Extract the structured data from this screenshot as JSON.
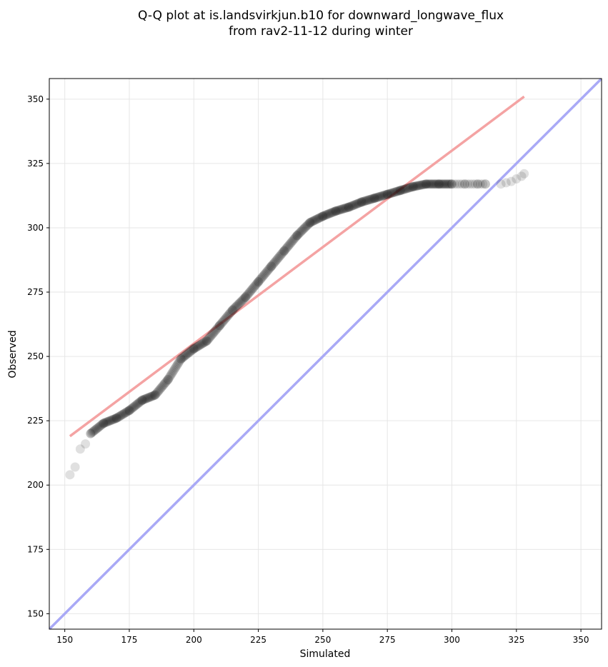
{
  "chart_data": {
    "type": "scatter",
    "title": [
      "Q-Q plot at is.landsvirkjun.b10 for downward_longwave_flux",
      "from rav2-11-12 during winter"
    ],
    "xlabel": "Simulated",
    "ylabel": "Observed",
    "xlim": [
      144,
      358
    ],
    "ylim": [
      144,
      358
    ],
    "xticks": [
      150,
      175,
      200,
      225,
      250,
      275,
      300,
      325,
      350
    ],
    "yticks": [
      150,
      175,
      200,
      225,
      250,
      275,
      300,
      325,
      350
    ],
    "grid": true,
    "colors": {
      "points": "#000000",
      "fit_line": "#f4a3a3",
      "identity_line": "#a9a9f6"
    },
    "fit_line": {
      "x": [
        152,
        328
      ],
      "y": [
        219,
        351
      ]
    },
    "identity_line": {
      "x": [
        144,
        358
      ],
      "y": [
        144,
        358
      ]
    },
    "quantile_knots": {
      "x": [
        152,
        154,
        156,
        158,
        160,
        165,
        170,
        175,
        180,
        185,
        190,
        195,
        200,
        205,
        210,
        215,
        220,
        225,
        230,
        235,
        240,
        245,
        250,
        255,
        260,
        265,
        270,
        275,
        280,
        285,
        290,
        295,
        300,
        305,
        310,
        313,
        319,
        321,
        323,
        325,
        327,
        328
      ],
      "y": [
        204,
        207,
        214,
        216,
        220,
        224,
        226,
        229,
        233,
        235,
        241,
        249,
        253,
        256,
        262,
        268,
        273,
        279,
        285,
        291,
        297,
        302,
        304.5,
        306.5,
        308,
        310,
        311.5,
        313,
        314.5,
        316,
        317,
        317,
        317,
        317,
        317,
        317,
        317,
        317.5,
        318,
        319,
        320,
        321
      ]
    }
  }
}
